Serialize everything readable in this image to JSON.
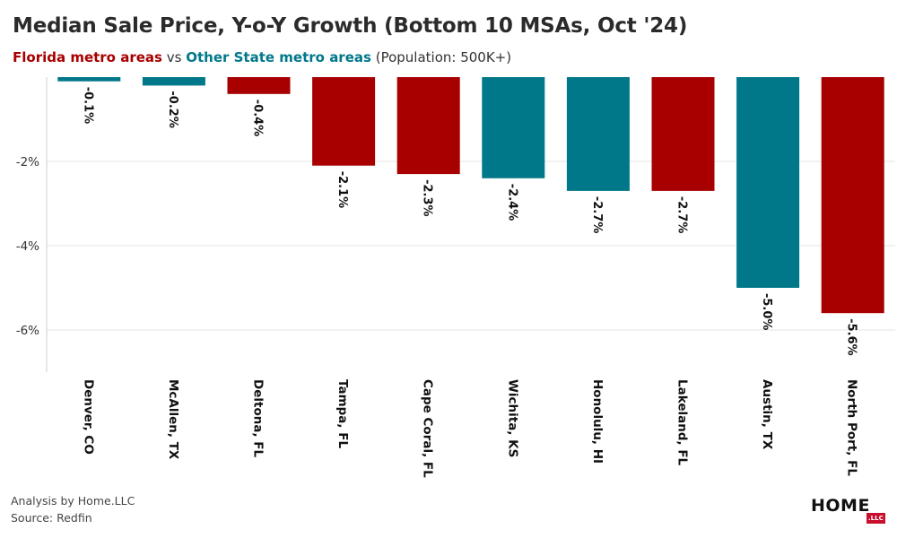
{
  "title": "Median Sale Price, Y-o-Y Growth (Bottom 10 MSAs, Oct '24)",
  "subtitle": {
    "florida_label": "Florida metro areas",
    "vs": "vs",
    "other_label": "Other State metro areas",
    "population": "(Population: 500K+)"
  },
  "colors": {
    "florida": "#a80000",
    "other": "#00788a"
  },
  "footer": {
    "analysis": "Analysis by Home.LLC",
    "source": "Source: Redfin"
  },
  "logo": {
    "text": "HOME",
    "badge": ".LLC"
  },
  "chart_data": {
    "type": "bar",
    "categories": [
      "Denver, CO",
      "McAllen, TX",
      "Deltona, FL",
      "Tampa, FL",
      "Cape Coral, FL",
      "Wichita, KS",
      "Honolulu, HI",
      "Lakeland, FL",
      "Austin, TX",
      "North Port, FL"
    ],
    "values": [
      -0.1,
      -0.2,
      -0.4,
      -2.1,
      -2.3,
      -2.4,
      -2.7,
      -2.7,
      -5.0,
      -5.6
    ],
    "data_labels": [
      "-0.1%",
      "-0.2%",
      "-0.4%",
      "-2.1%",
      "-2.3%",
      "-2.4%",
      "-2.7%",
      "-2.7%",
      "-5.0%",
      "-5.6%"
    ],
    "group": [
      "other",
      "other",
      "florida",
      "florida",
      "florida",
      "other",
      "other",
      "florida",
      "other",
      "florida"
    ],
    "y_ticks": [
      -2,
      -4,
      -6
    ],
    "y_tick_labels": [
      "-2%",
      "-4%",
      "-6%"
    ],
    "ylim": [
      -7,
      0
    ],
    "grid": true,
    "legend": "subtitle"
  }
}
